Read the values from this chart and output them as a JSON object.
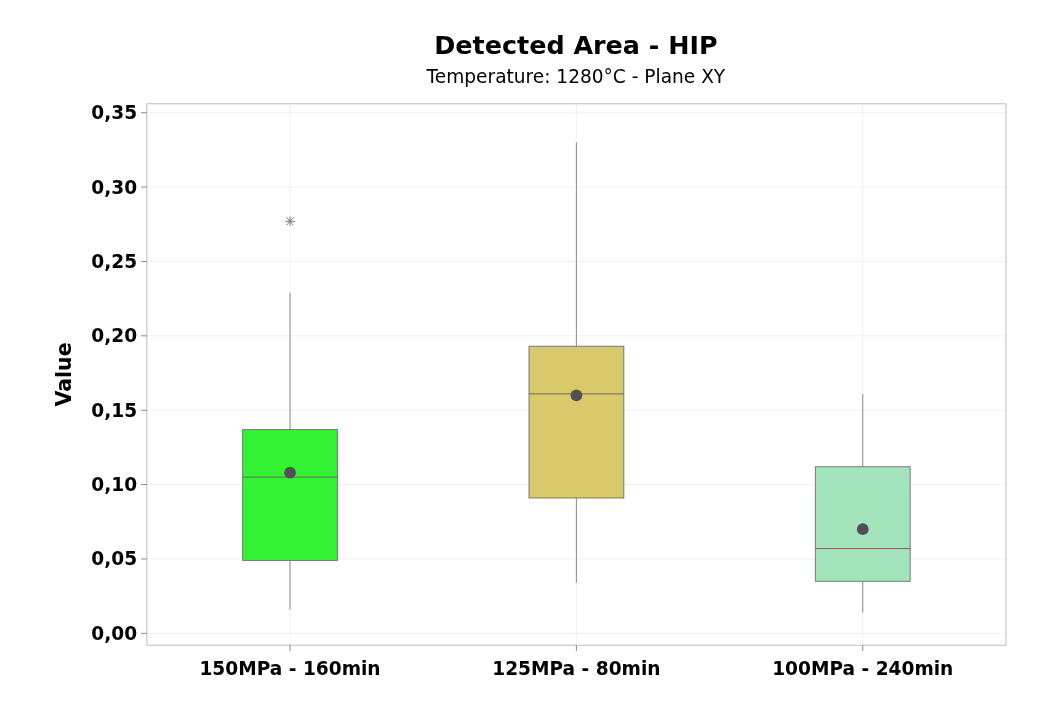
{
  "chart_data": {
    "type": "box",
    "title": "Detected Area - HIP",
    "subtitle": "Temperature: 1280°C - Plane XY",
    "ylabel": "Value",
    "categories": [
      "150MPa - 160min",
      "125MPa - 80min",
      "100MPa - 240min"
    ],
    "colors": [
      "#33f233",
      "#d8c96a",
      "#a4e4bc"
    ],
    "boxes": [
      {
        "low": 0.016,
        "q1": 0.049,
        "median": 0.105,
        "q3": 0.137,
        "high": 0.229,
        "mean": 0.108,
        "outliers": [
          0.277
        ]
      },
      {
        "low": 0.034,
        "q1": 0.091,
        "median": 0.161,
        "q3": 0.193,
        "high": 0.33,
        "mean": 0.16
      },
      {
        "low": 0.014,
        "q1": 0.035,
        "median": 0.057,
        "q3": 0.112,
        "high": 0.161,
        "mean": 0.07
      }
    ],
    "ylim": [
      -0.008,
      0.356
    ],
    "yticks": [
      {
        "value": 0,
        "label": "0,00"
      },
      {
        "value": 0.05,
        "label": "0,05"
      },
      {
        "value": 0.1,
        "label": "0,10"
      },
      {
        "value": 0.15,
        "label": "0,15"
      },
      {
        "value": 0.2,
        "label": "0,20"
      },
      {
        "value": 0.25,
        "label": "0,25"
      },
      {
        "value": 0.3,
        "label": "0,30"
      },
      {
        "value": 0.35,
        "label": "0,35"
      }
    ],
    "grid": true
  }
}
